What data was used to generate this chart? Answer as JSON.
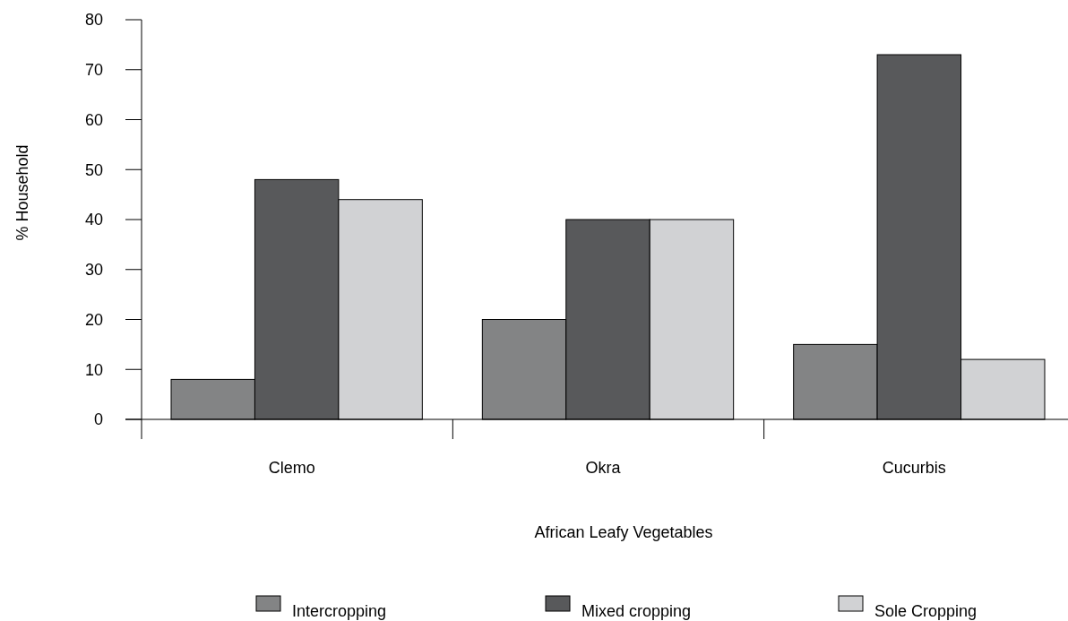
{
  "chart_data": {
    "type": "bar",
    "xlabel": "African Leafy Vegetables",
    "ylabel": "% Household",
    "categories": [
      "Clemo",
      "Okra",
      "Cucurbis"
    ],
    "series": [
      {
        "name": "Intercropping",
        "color": "#838485",
        "values": [
          8,
          20,
          15
        ]
      },
      {
        "name": "Mixed cropping",
        "color": "#58595b",
        "values": [
          48,
          40,
          73
        ]
      },
      {
        "name": "Sole Cropping",
        "color": "#d1d2d4",
        "values": [
          44,
          40,
          12
        ]
      }
    ],
    "ylim": [
      0,
      80
    ],
    "yticks": [
      0,
      10,
      20,
      30,
      40,
      50,
      60,
      70,
      80
    ],
    "grid": false,
    "legend": "bottom"
  }
}
